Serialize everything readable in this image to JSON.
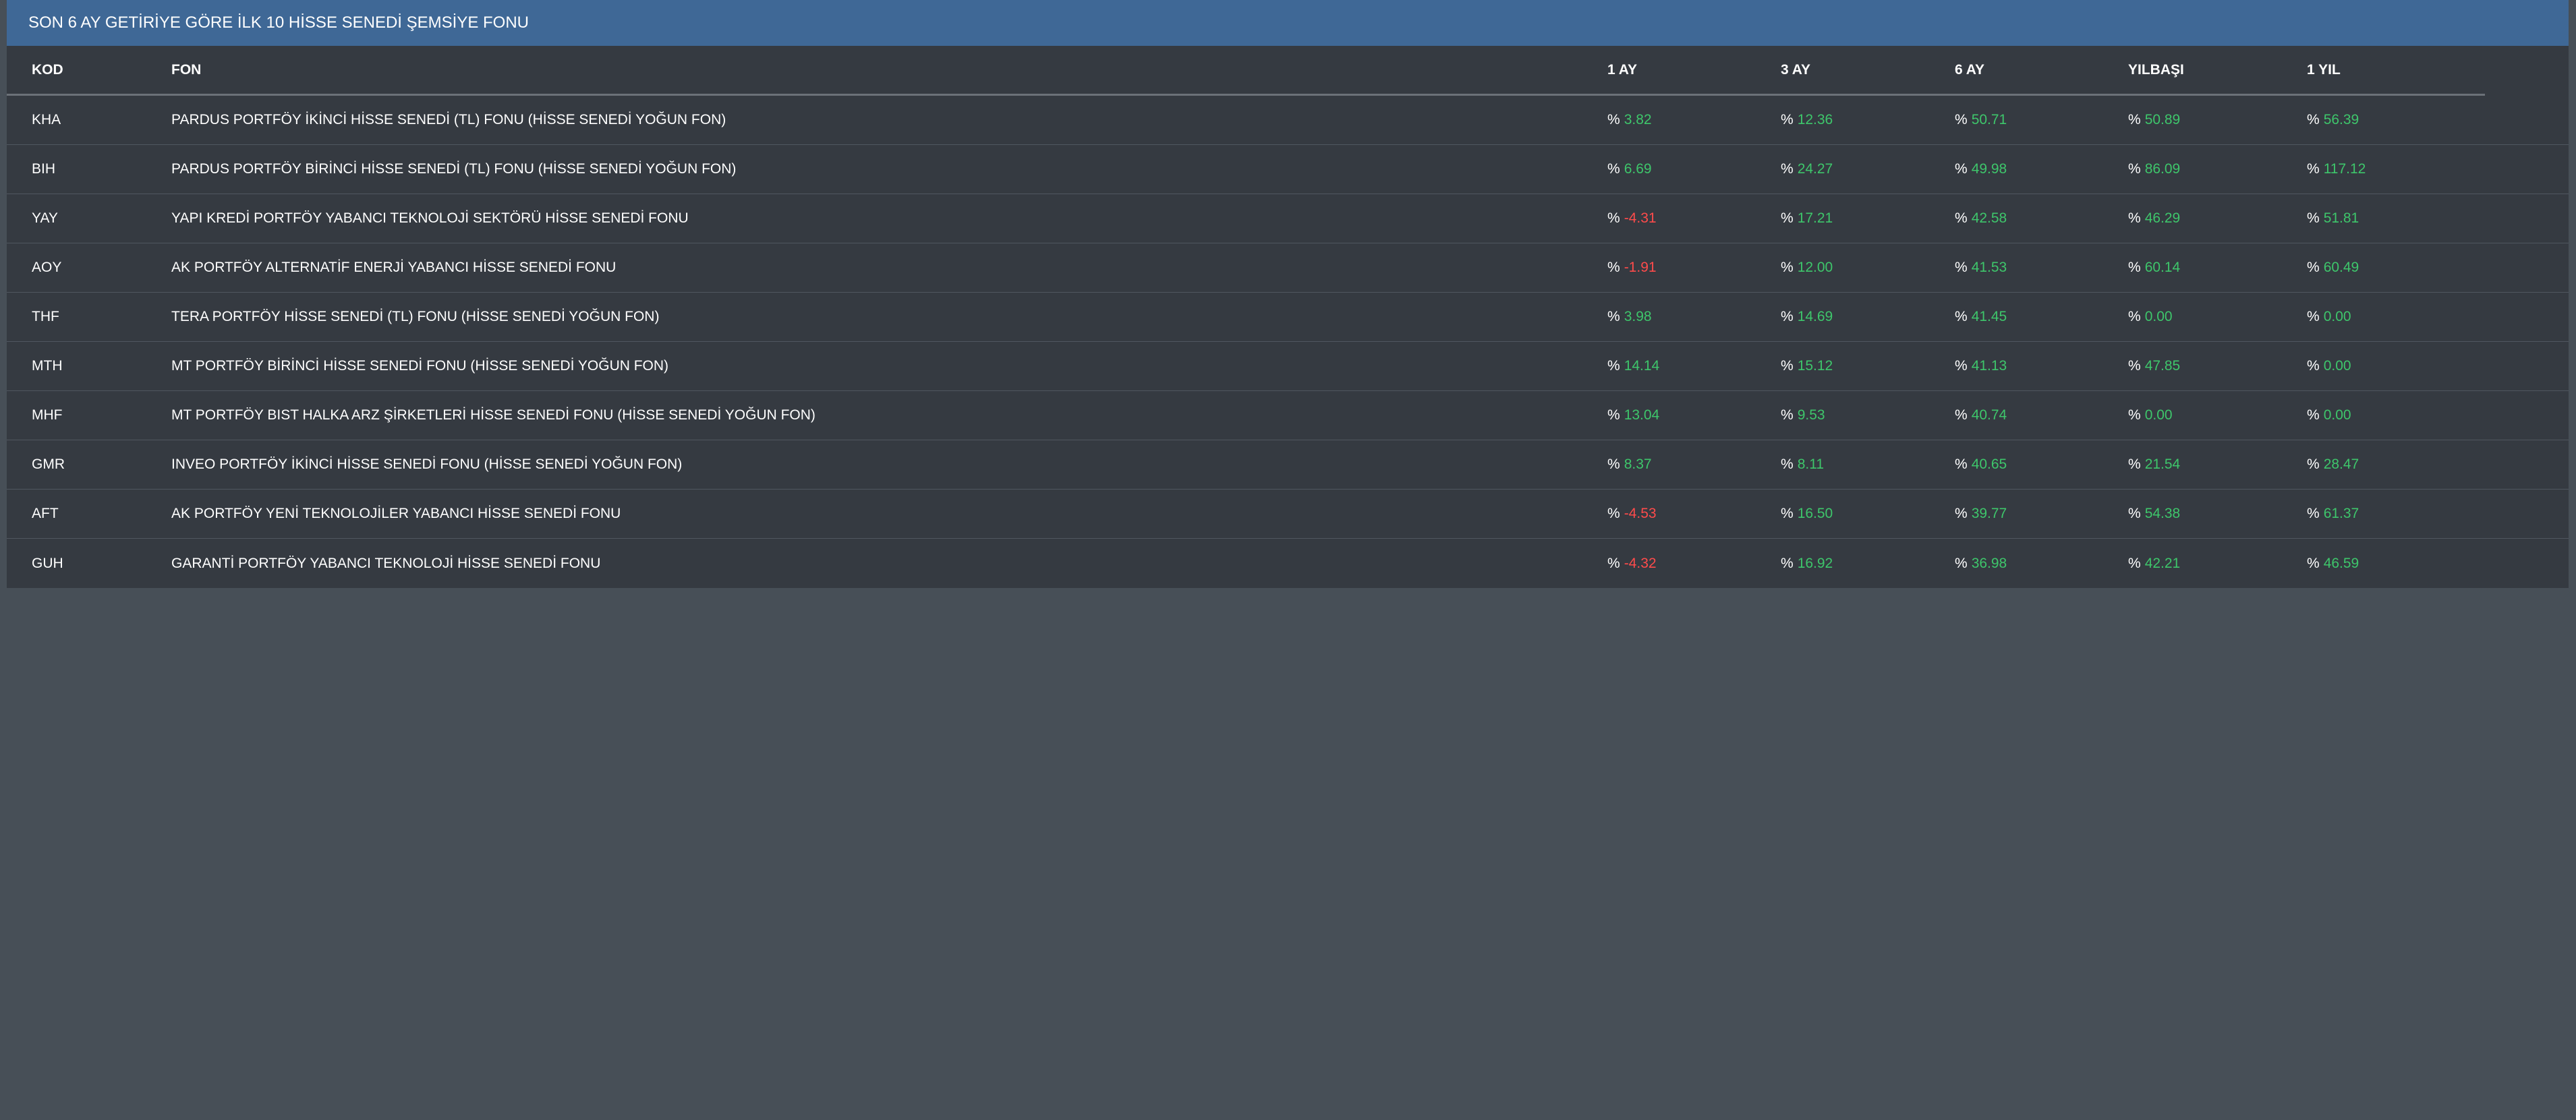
{
  "title": "SON 6 AY GETİRİYE GÖRE İLK 10 HİSSE SENEDİ ŞEMSİYE FONU",
  "colors": {
    "header_bg": "#3f6896",
    "panel_bg": "#353a41",
    "page_bg": "#474f57",
    "positive": "#3ec66b",
    "negative": "#ff4b4b"
  },
  "columns": [
    "KOD",
    "FON",
    "1 AY",
    "3 AY",
    "6 AY",
    "YILBAŞI",
    "1 YIL"
  ],
  "percent_symbol": "%",
  "rows": [
    {
      "kod": "KHA",
      "fon": "PARDUS PORTFÖY İKİNCİ HİSSE SENEDİ (TL) FONU (HİSSE SENEDİ YOĞUN FON)",
      "ay1": "3.82",
      "ay3": "12.36",
      "ay6": "50.71",
      "ytd": "50.89",
      "yil1": "56.39"
    },
    {
      "kod": "BIH",
      "fon": "PARDUS PORTFÖY BİRİNCİ HİSSE SENEDİ (TL) FONU (HİSSE SENEDİ YOĞUN FON)",
      "ay1": "6.69",
      "ay3": "24.27",
      "ay6": "49.98",
      "ytd": "86.09",
      "yil1": "117.12"
    },
    {
      "kod": "YAY",
      "fon": "YAPI KREDİ PORTFÖY YABANCI TEKNOLOJİ SEKTÖRÜ HİSSE SENEDİ FONU",
      "ay1": "-4.31",
      "ay3": "17.21",
      "ay6": "42.58",
      "ytd": "46.29",
      "yil1": "51.81"
    },
    {
      "kod": "AOY",
      "fon": "AK PORTFÖY ALTERNATİF ENERJİ YABANCI HİSSE SENEDİ FONU",
      "ay1": "-1.91",
      "ay3": "12.00",
      "ay6": "41.53",
      "ytd": "60.14",
      "yil1": "60.49"
    },
    {
      "kod": "THF",
      "fon": "TERA PORTFÖY HİSSE SENEDİ (TL) FONU (HİSSE SENEDİ YOĞUN FON)",
      "ay1": "3.98",
      "ay3": "14.69",
      "ay6": "41.45",
      "ytd": "0.00",
      "yil1": "0.00"
    },
    {
      "kod": "MTH",
      "fon": "MT PORTFÖY BİRİNCİ HİSSE SENEDİ FONU (HİSSE SENEDİ YOĞUN FON)",
      "ay1": "14.14",
      "ay3": "15.12",
      "ay6": "41.13",
      "ytd": "47.85",
      "yil1": "0.00"
    },
    {
      "kod": "MHF",
      "fon": "MT PORTFÖY BIST HALKA ARZ ŞİRKETLERİ HİSSE SENEDİ FONU (HİSSE SENEDİ YOĞUN FON)",
      "ay1": "13.04",
      "ay3": "9.53",
      "ay6": "40.74",
      "ytd": "0.00",
      "yil1": "0.00"
    },
    {
      "kod": "GMR",
      "fon": "INVEO PORTFÖY İKİNCİ HİSSE SENEDİ FONU (HİSSE SENEDİ YOĞUN FON)",
      "ay1": "8.37",
      "ay3": "8.11",
      "ay6": "40.65",
      "ytd": "21.54",
      "yil1": "28.47"
    },
    {
      "kod": "AFT",
      "fon": "AK PORTFÖY YENİ TEKNOLOJİLER YABANCI HİSSE SENEDİ FONU",
      "ay1": "-4.53",
      "ay3": "16.50",
      "ay6": "39.77",
      "ytd": "54.38",
      "yil1": "61.37"
    },
    {
      "kod": "GUH",
      "fon": "GARANTİ PORTFÖY YABANCI TEKNOLOJİ HİSSE SENEDİ FONU",
      "ay1": "-4.32",
      "ay3": "16.92",
      "ay6": "36.98",
      "ytd": "42.21",
      "yil1": "46.59"
    }
  ]
}
